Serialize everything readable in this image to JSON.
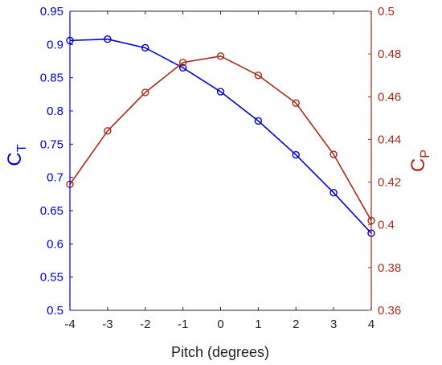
{
  "chart_data": {
    "type": "line",
    "xlabel": "Pitch (degrees)",
    "x": [
      -4,
      -3,
      -2,
      -1,
      0,
      1,
      2,
      3,
      4
    ],
    "xlim": [
      -4,
      4
    ],
    "xticks": [
      "-4",
      "-3",
      "-2",
      "-1",
      "0",
      "1",
      "2",
      "3",
      "4"
    ],
    "left_axis": {
      "label_main": "C",
      "label_sub": "T",
      "ylim": [
        0.5,
        0.95
      ],
      "ticks": [
        "0.5",
        "0.55",
        "0.6",
        "0.65",
        "0.7",
        "0.75",
        "0.8",
        "0.85",
        "0.9",
        "0.95"
      ],
      "color": "#0000cc"
    },
    "right_axis": {
      "label_main": "C",
      "label_sub": "P",
      "ylim": [
        0.36,
        0.5
      ],
      "ticks": [
        "0.36",
        "0.38",
        "0.4",
        "0.42",
        "0.44",
        "0.46",
        "0.48",
        "0.5"
      ],
      "color": "#a52a1a"
    },
    "series": [
      {
        "axis": "left",
        "color": "#0000cc",
        "marker": "circle",
        "values": [
          0.906,
          0.908,
          0.895,
          0.865,
          0.829,
          0.785,
          0.734,
          0.677,
          0.616
        ]
      },
      {
        "axis": "right",
        "color": "#a52a1a",
        "marker": "circle",
        "values": [
          0.419,
          0.444,
          0.462,
          0.476,
          0.479,
          0.47,
          0.457,
          0.433,
          0.402
        ]
      }
    ],
    "grid": false
  }
}
